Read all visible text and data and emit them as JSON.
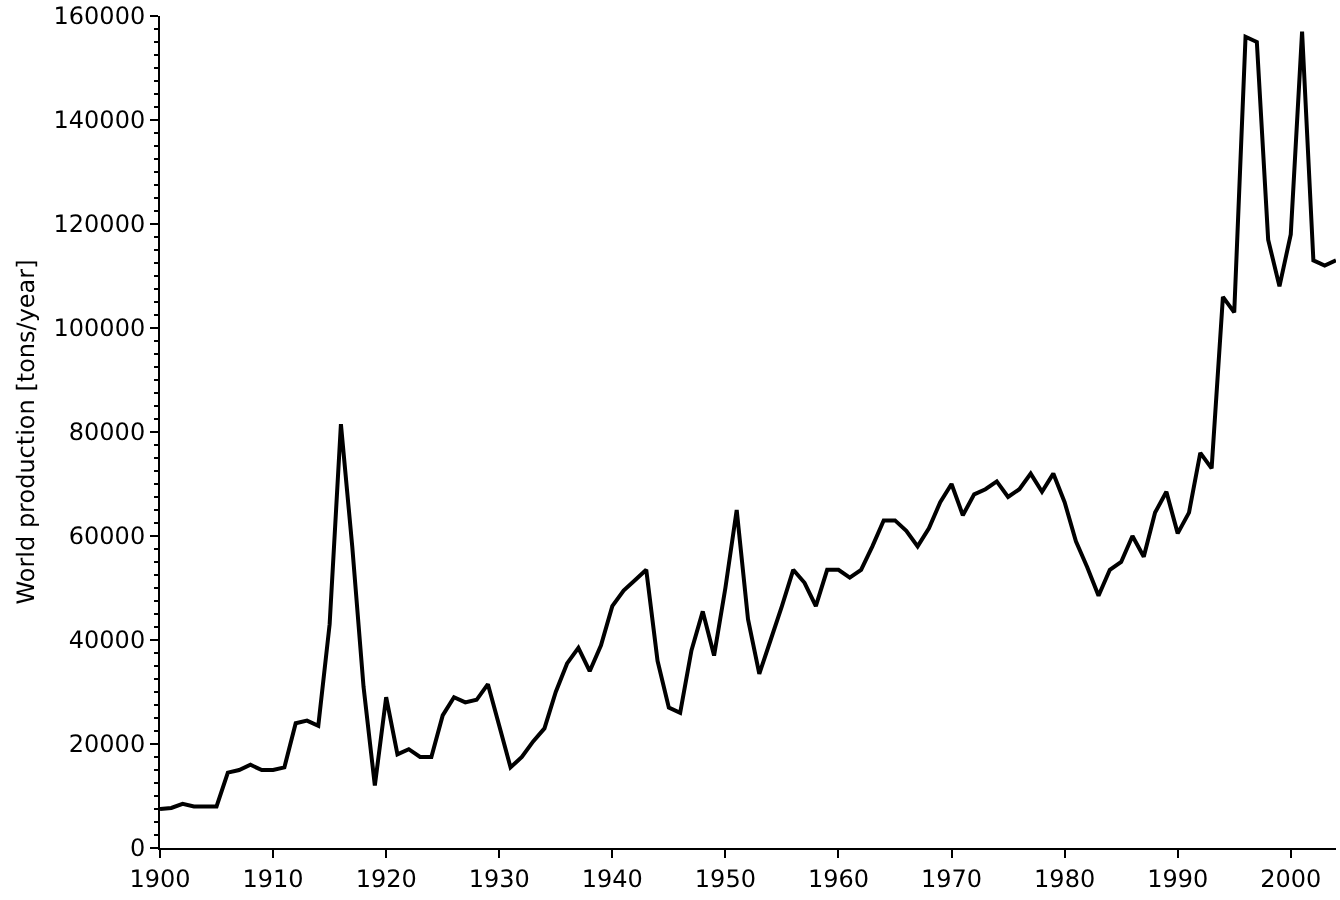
{
  "chart_data": {
    "type": "line",
    "ylabel": "World production [tons/year]",
    "x": [
      1900,
      1901,
      1902,
      1903,
      1904,
      1905,
      1906,
      1907,
      1908,
      1909,
      1910,
      1911,
      1912,
      1913,
      1914,
      1915,
      1916,
      1917,
      1918,
      1919,
      1920,
      1921,
      1922,
      1923,
      1924,
      1925,
      1926,
      1927,
      1928,
      1929,
      1930,
      1931,
      1932,
      1933,
      1934,
      1935,
      1936,
      1937,
      1938,
      1939,
      1940,
      1941,
      1942,
      1943,
      1944,
      1945,
      1946,
      1947,
      1948,
      1949,
      1950,
      1951,
      1952,
      1953,
      1954,
      1955,
      1956,
      1957,
      1958,
      1959,
      1960,
      1961,
      1962,
      1963,
      1964,
      1965,
      1966,
      1967,
      1968,
      1969,
      1970,
      1971,
      1972,
      1973,
      1974,
      1975,
      1976,
      1977,
      1978,
      1979,
      1980,
      1981,
      1982,
      1983,
      1984,
      1985,
      1986,
      1987,
      1988,
      1989,
      1990,
      1991,
      1992,
      1993,
      1994,
      1995,
      1996,
      1997,
      1998,
      1999,
      2000,
      2001,
      2002,
      2003,
      2004
    ],
    "series": [
      {
        "color": "#000000",
        "values": [
          7500,
          7700,
          8500,
          8000,
          8000,
          8000,
          14500,
          15000,
          16000,
          15000,
          15000,
          15500,
          24000,
          24500,
          23500,
          43000,
          81500,
          58000,
          31000,
          12000,
          29000,
          18000,
          19000,
          17500,
          17500,
          25500,
          29000,
          28000,
          28500,
          31500,
          23500,
          15500,
          17500,
          20500,
          23000,
          30000,
          35500,
          38500,
          34000,
          39000,
          46500,
          49500,
          51500,
          53500,
          36000,
          27000,
          26000,
          38000,
          45500,
          37000,
          50000,
          65000,
          44000,
          33500,
          40000,
          46500,
          53500,
          51000,
          46500,
          53500,
          53500,
          52000,
          53500,
          58000,
          63000,
          63000,
          61000,
          58000,
          61500,
          66500,
          70000,
          64000,
          68000,
          69000,
          70500,
          67500,
          69000,
          72000,
          68500,
          72000,
          66500,
          59000,
          54000,
          48500,
          53500,
          55000,
          60000,
          56000,
          64500,
          68500,
          60500,
          64500,
          76000,
          73000,
          106000,
          103000,
          156000,
          155000,
          117000,
          108000,
          118000,
          157000,
          113000,
          112000,
          113000
        ]
      }
    ],
    "xlim": [
      1900,
      2004
    ],
    "xticks": [
      1900,
      1910,
      1920,
      1930,
      1940,
      1950,
      1960,
      1970,
      1980,
      1990,
      2000
    ],
    "ylim": [
      0,
      160000
    ],
    "yticks": [
      0,
      20000,
      40000,
      60000,
      80000,
      100000,
      120000,
      140000,
      160000
    ],
    "line_style": "solid"
  }
}
